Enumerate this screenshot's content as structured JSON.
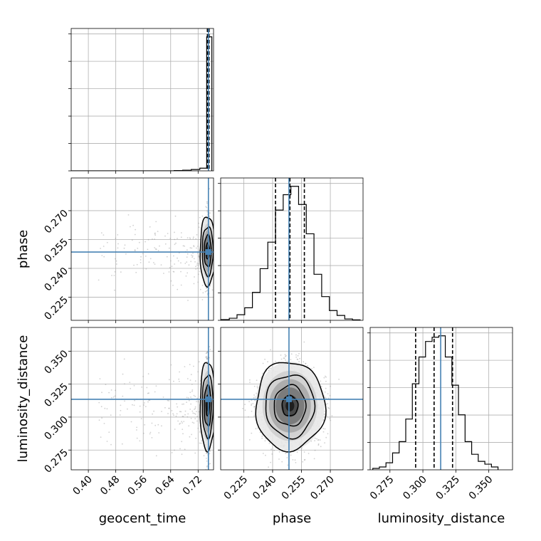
{
  "chart_data": {
    "type": "corner",
    "parameters": [
      "geocent_time",
      "phase",
      "luminosity_distance"
    ],
    "axis_labels": {
      "x": [
        "geocent_time",
        "phase",
        "luminosity_distance"
      ],
      "y": [
        "phase",
        "luminosity_distance"
      ]
    },
    "ranges": {
      "geocent_time": [
        0.35,
        0.765
      ],
      "phase": [
        0.213,
        0.287
      ],
      "luminosity_distance": [
        0.26,
        0.368
      ]
    },
    "ticks": {
      "geocent_time": {
        "values": [
          0.4,
          0.48,
          0.56,
          0.64,
          0.72
        ],
        "labels": [
          "0.40",
          "0.48",
          "0.56",
          "0.64",
          "0.72"
        ]
      },
      "phase": {
        "values": [
          0.225,
          0.24,
          0.255,
          0.27
        ],
        "labels": [
          "0.225",
          "0.240",
          "0.255",
          "0.270"
        ]
      },
      "luminosity_distance": {
        "values": [
          0.275,
          0.3,
          0.325,
          0.35
        ],
        "labels": [
          "0.275",
          "0.300",
          "0.325",
          "0.350"
        ]
      }
    },
    "truths": {
      "geocent_time": 0.75,
      "phase": 0.2485,
      "luminosity_distance": 0.3135
    },
    "quantiles": {
      "geocent_time": [
        0.747,
        0.749,
        0.752
      ],
      "phase": [
        0.2415,
        0.249,
        0.2565
      ],
      "luminosity_distance": [
        0.2945,
        0.3085,
        0.3225
      ]
    },
    "histograms": {
      "geocent_time": {
        "bin_edges": [
          0.35,
          0.375,
          0.4,
          0.425,
          0.45,
          0.475,
          0.5,
          0.525,
          0.55,
          0.575,
          0.6,
          0.625,
          0.65,
          0.675,
          0.7,
          0.725,
          0.745,
          0.76
        ],
        "counts": [
          0,
          0,
          0,
          0,
          0,
          0,
          0,
          0,
          0,
          0,
          0,
          0,
          0.002,
          0.005,
          0.01,
          0.02,
          1.0
        ]
      },
      "phase": {
        "bin_edges": [
          0.213,
          0.2175,
          0.2215,
          0.2255,
          0.2295,
          0.2335,
          0.2375,
          0.2415,
          0.2455,
          0.2495,
          0.2535,
          0.2575,
          0.2615,
          0.2655,
          0.2695,
          0.2735,
          0.2775,
          0.2815,
          0.2855
        ],
        "counts": [
          0.005,
          0.015,
          0.04,
          0.09,
          0.2,
          0.37,
          0.56,
          0.79,
          0.9,
          0.96,
          0.83,
          0.62,
          0.33,
          0.17,
          0.07,
          0.035,
          0.01,
          0.003
        ]
      },
      "luminosity_distance": {
        "bin_edges": [
          0.262,
          0.267,
          0.272,
          0.277,
          0.282,
          0.287,
          0.292,
          0.297,
          0.302,
          0.307,
          0.312,
          0.317,
          0.322,
          0.327,
          0.332,
          0.337,
          0.342,
          0.347,
          0.352,
          0.357
        ],
        "counts": [
          0.01,
          0.02,
          0.05,
          0.12,
          0.2,
          0.36,
          0.61,
          0.8,
          0.91,
          0.94,
          0.95,
          0.8,
          0.6,
          0.39,
          0.2,
          0.11,
          0.06,
          0.04,
          0.02
        ]
      }
    },
    "colors": {
      "truth": "#4682b4",
      "grid": "#b0b0b0",
      "line": "#000000",
      "scatter": "#808080"
    },
    "grid": true
  }
}
